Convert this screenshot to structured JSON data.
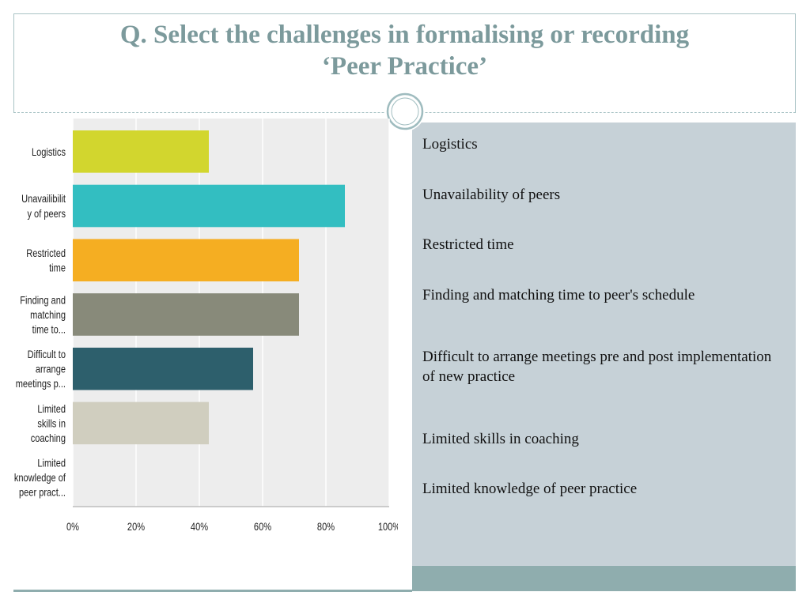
{
  "title": {
    "line1": "Q. Select the challenges in formalising or recording",
    "line2": "‘Peer Practice’"
  },
  "legend": [
    "Logistics",
    "Unavailability of peers",
    "Restricted time",
    "Finding and matching time to peer's schedule",
    "Difficult to arrange meetings pre and post implementation of new practice",
    "Limited skills in coaching",
    "Limited knowledge of peer practice"
  ],
  "chart_data": {
    "type": "bar",
    "orientation": "horizontal",
    "categories": [
      [
        "Logistics"
      ],
      [
        "Unavailibilit",
        "y of peers"
      ],
      [
        "Restricted",
        "time"
      ],
      [
        "Finding and",
        "matching",
        "time to..."
      ],
      [
        "Difficult to",
        "arrange",
        "meetings p..."
      ],
      [
        "Limited",
        "skills in",
        "coaching"
      ],
      [
        "Limited",
        "knowledge of",
        "peer pract..."
      ]
    ],
    "values": [
      43,
      86,
      71.5,
      71.5,
      57,
      43,
      0
    ],
    "colors": [
      "#d2d62e",
      "#33bec1",
      "#f5ae22",
      "#888a7a",
      "#2d5f6c",
      "#d0cebf",
      "#cccccc"
    ],
    "xlim": [
      0,
      100
    ],
    "ticks": [
      "0%",
      "20%",
      "40%",
      "60%",
      "80%",
      "100%"
    ],
    "tick_values": [
      0,
      20,
      40,
      60,
      80,
      100
    ],
    "grid": true,
    "plot_background": "#ededed"
  }
}
